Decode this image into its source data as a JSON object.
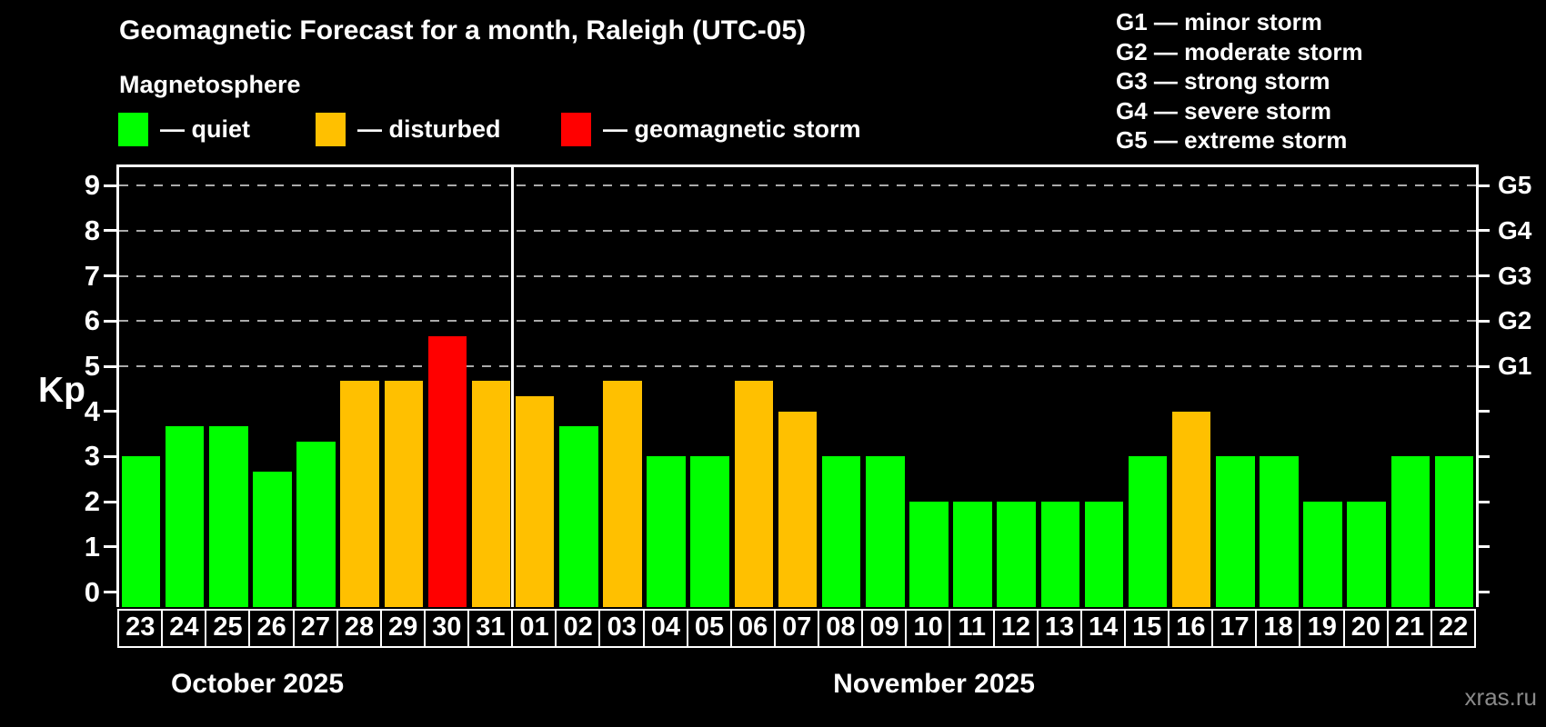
{
  "header": {
    "title": "Geomagnetic Forecast for a month, Raleigh (UTC-05)",
    "subtitle": "Magnetosphere"
  },
  "legend": {
    "items": [
      {
        "name": "quiet",
        "label": "— quiet",
        "color": "#00ff00"
      },
      {
        "name": "disturbed",
        "label": "— disturbed",
        "color": "#ffc000"
      },
      {
        "name": "storm",
        "label": "— geomagnetic storm",
        "color": "#ff0000"
      }
    ]
  },
  "g_scale_legend": [
    "G1 — minor storm",
    "G2 — moderate storm",
    "G3 — strong storm",
    "G4 — severe storm",
    "G5 — extreme storm"
  ],
  "watermark": "xras.ru",
  "chart_data": {
    "type": "bar",
    "title": "Geomagnetic Forecast for a month, Raleigh (UTC-05)",
    "ylabel": "Kp",
    "xlabel": "",
    "ylim": [
      0,
      9.4
    ],
    "yticks": [
      0,
      1,
      2,
      3,
      4,
      5,
      6,
      7,
      8,
      9
    ],
    "grid": "dashed horizontal lines at Kp 5-9 only",
    "gridlines_at": [
      5,
      6,
      7,
      8,
      9
    ],
    "right_axis": [
      {
        "kp": 5,
        "label": "G1"
      },
      {
        "kp": 6,
        "label": "G2"
      },
      {
        "kp": 7,
        "label": "G3"
      },
      {
        "kp": 8,
        "label": "G4"
      },
      {
        "kp": 9,
        "label": "G5"
      }
    ],
    "legend_position": "top-left and top-right",
    "status_colors": {
      "quiet": "#00ff00",
      "disturbed": "#ffc000",
      "storm": "#ff0000"
    },
    "months": [
      {
        "label": "October 2025",
        "bars": [
          {
            "day": "23",
            "kp": 3.0,
            "status": "quiet"
          },
          {
            "day": "24",
            "kp": 3.67,
            "status": "quiet"
          },
          {
            "day": "25",
            "kp": 3.67,
            "status": "quiet"
          },
          {
            "day": "26",
            "kp": 2.67,
            "status": "quiet"
          },
          {
            "day": "27",
            "kp": 3.33,
            "status": "quiet"
          },
          {
            "day": "28",
            "kp": 4.67,
            "status": "disturbed"
          },
          {
            "day": "29",
            "kp": 4.67,
            "status": "disturbed"
          },
          {
            "day": "30",
            "kp": 5.67,
            "status": "storm"
          },
          {
            "day": "31",
            "kp": 4.67,
            "status": "disturbed"
          }
        ]
      },
      {
        "label": "November 2025",
        "bars": [
          {
            "day": "01",
            "kp": 4.33,
            "status": "disturbed"
          },
          {
            "day": "02",
            "kp": 3.67,
            "status": "quiet"
          },
          {
            "day": "03",
            "kp": 4.67,
            "status": "disturbed"
          },
          {
            "day": "04",
            "kp": 3.0,
            "status": "quiet"
          },
          {
            "day": "05",
            "kp": 3.0,
            "status": "quiet"
          },
          {
            "day": "06",
            "kp": 4.67,
            "status": "disturbed"
          },
          {
            "day": "07",
            "kp": 4.0,
            "status": "disturbed"
          },
          {
            "day": "08",
            "kp": 3.0,
            "status": "quiet"
          },
          {
            "day": "09",
            "kp": 3.0,
            "status": "quiet"
          },
          {
            "day": "10",
            "kp": 2.0,
            "status": "quiet"
          },
          {
            "day": "11",
            "kp": 2.0,
            "status": "quiet"
          },
          {
            "day": "12",
            "kp": 2.0,
            "status": "quiet"
          },
          {
            "day": "13",
            "kp": 2.0,
            "status": "quiet"
          },
          {
            "day": "14",
            "kp": 2.0,
            "status": "quiet"
          },
          {
            "day": "15",
            "kp": 3.0,
            "status": "quiet"
          },
          {
            "day": "16",
            "kp": 4.0,
            "status": "disturbed"
          },
          {
            "day": "17",
            "kp": 3.0,
            "status": "quiet"
          },
          {
            "day": "18",
            "kp": 3.0,
            "status": "quiet"
          },
          {
            "day": "19",
            "kp": 2.0,
            "status": "quiet"
          },
          {
            "day": "20",
            "kp": 2.0,
            "status": "quiet"
          },
          {
            "day": "21",
            "kp": 3.0,
            "status": "quiet"
          },
          {
            "day": "22",
            "kp": 3.0,
            "status": "quiet"
          }
        ]
      }
    ]
  }
}
